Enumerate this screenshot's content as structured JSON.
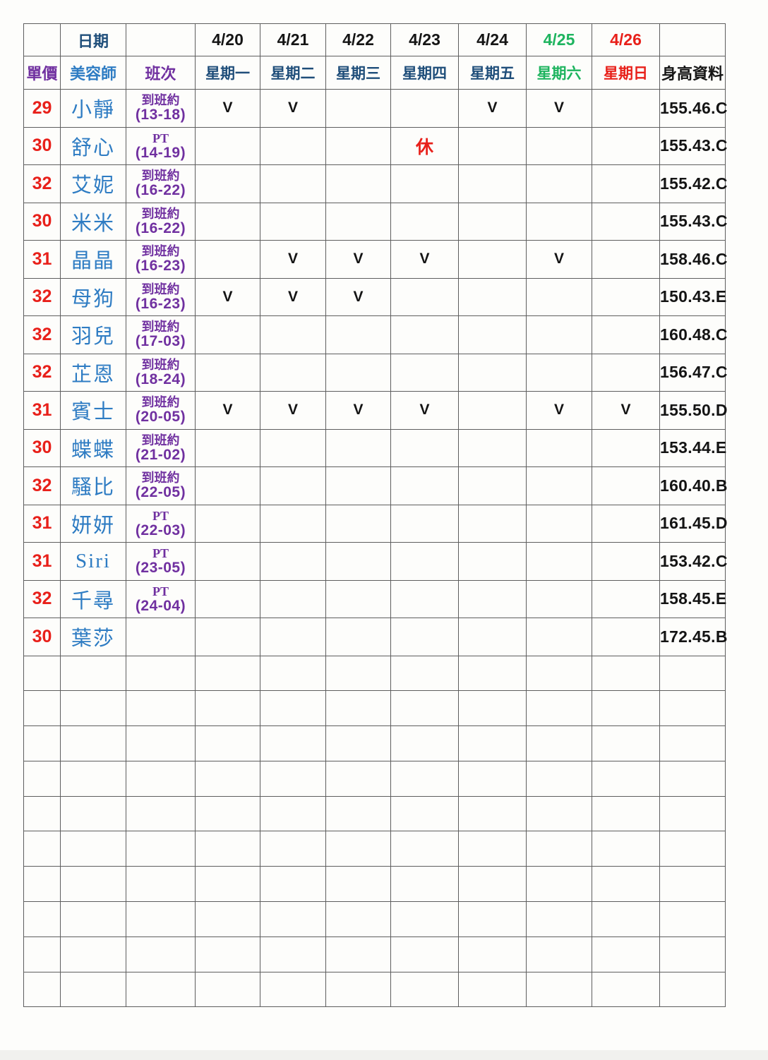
{
  "colors": {
    "price_red": "#e8201a",
    "name_blue": "#2e7cc3",
    "weekday_navy": "#1f4e7a",
    "shift_purple": "#7030a0",
    "saturday_green": "#1eb45f",
    "sunday_red": "#e8201a",
    "grid_line": "#5e5e5e",
    "text_black": "#151515"
  },
  "table": {
    "header": {
      "date_label": "日期",
      "dates": [
        "4/20",
        "4/21",
        "4/22",
        "4/23",
        "4/24",
        "4/25",
        "4/26"
      ],
      "price_label": "單價",
      "beautician_label": "美容師",
      "shift_label": "班次",
      "weekdays": [
        "星期一",
        "星期二",
        "星期三",
        "星期四",
        "星期五",
        "星期六",
        "星期日"
      ],
      "height_label": "身高資料"
    },
    "check_symbol": "V",
    "rest_symbol": "休",
    "rows": [
      {
        "price": "29",
        "name": "小靜",
        "shift1": "到班約",
        "shift2": "(13-18)",
        "marks": [
          "V",
          "V",
          "",
          "",
          "V",
          "V",
          ""
        ],
        "height": "155.46.C"
      },
      {
        "price": "30",
        "name": "舒心",
        "shift1": "PT",
        "shift2": "(14-19)",
        "marks": [
          "",
          "",
          "",
          "休",
          "",
          "",
          ""
        ],
        "height": "155.43.C"
      },
      {
        "price": "32",
        "name": "艾妮",
        "shift1": "到班約",
        "shift2": "(16-22)",
        "marks": [
          "",
          "",
          "",
          "",
          "",
          "",
          ""
        ],
        "height": "155.42.C"
      },
      {
        "price": "30",
        "name": "米米",
        "shift1": "到班約",
        "shift2": "(16-22)",
        "marks": [
          "",
          "",
          "",
          "",
          "",
          "",
          ""
        ],
        "height": "155.43.C"
      },
      {
        "price": "31",
        "name": "晶晶",
        "shift1": "到班約",
        "shift2": "(16-23)",
        "marks": [
          "",
          "V",
          "V",
          "V",
          "",
          "V",
          ""
        ],
        "height": "158.46.C"
      },
      {
        "price": "32",
        "name": "母狗",
        "shift1": "到班約",
        "shift2": "(16-23)",
        "marks": [
          "V",
          "V",
          "V",
          "",
          "",
          "",
          ""
        ],
        "height": "150.43.E"
      },
      {
        "price": "32",
        "name": "羽兒",
        "shift1": "到班約",
        "shift2": "(17-03)",
        "marks": [
          "",
          "",
          "",
          "",
          "",
          "",
          ""
        ],
        "height": "160.48.C"
      },
      {
        "price": "32",
        "name": "芷恩",
        "shift1": "到班約",
        "shift2": "(18-24)",
        "marks": [
          "",
          "",
          "",
          "",
          "",
          "",
          ""
        ],
        "height": "156.47.C"
      },
      {
        "price": "31",
        "name": "賓士",
        "shift1": "到班約",
        "shift2": "(20-05)",
        "marks": [
          "V",
          "V",
          "V",
          "V",
          "",
          "V",
          "V"
        ],
        "height": "155.50.D"
      },
      {
        "price": "30",
        "name": "蝶蝶",
        "shift1": "到班約",
        "shift2": "(21-02)",
        "marks": [
          "",
          "",
          "",
          "",
          "",
          "",
          ""
        ],
        "height": "153.44.E"
      },
      {
        "price": "32",
        "name": "騷比",
        "shift1": "到班約",
        "shift2": "(22-05)",
        "marks": [
          "",
          "",
          "",
          "",
          "",
          "",
          ""
        ],
        "height": "160.40.B"
      },
      {
        "price": "31",
        "name": "妍妍",
        "shift1": "PT",
        "shift2": "(22-03)",
        "marks": [
          "",
          "",
          "",
          "",
          "",
          "",
          ""
        ],
        "height": "161.45.D"
      },
      {
        "price": "31",
        "name": "Siri",
        "shift1": "PT",
        "shift2": "(23-05)",
        "marks": [
          "",
          "",
          "",
          "",
          "",
          "",
          ""
        ],
        "height": "153.42.C"
      },
      {
        "price": "32",
        "name": "千尋",
        "shift1": "PT",
        "shift2": "(24-04)",
        "marks": [
          "",
          "",
          "",
          "",
          "",
          "",
          ""
        ],
        "height": "158.45.E"
      },
      {
        "price": "30",
        "name": "葉莎",
        "shift1": "",
        "shift2": "",
        "marks": [
          "",
          "",
          "",
          "",
          "",
          "",
          ""
        ],
        "height": "172.45.B"
      }
    ],
    "empty_row_count": 10
  }
}
